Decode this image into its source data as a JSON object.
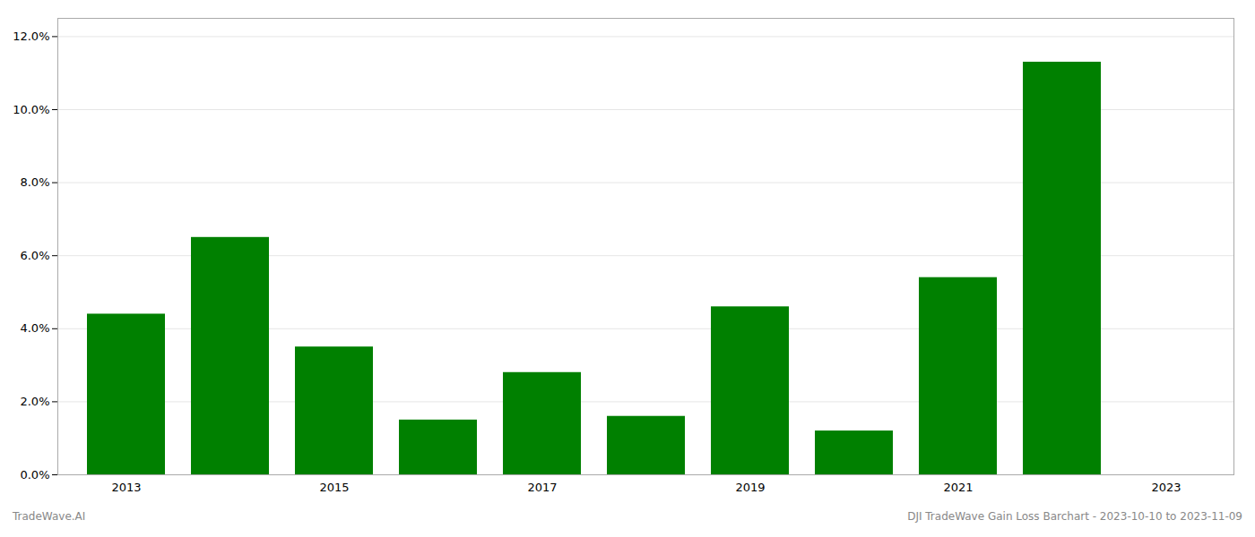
{
  "chart_data": {
    "type": "bar",
    "categories": [
      "2013",
      null,
      "2015",
      null,
      "2017",
      null,
      "2019",
      null,
      "2021",
      null,
      "2023"
    ],
    "values": [
      0.044,
      0.065,
      0.035,
      0.015,
      0.028,
      0.016,
      0.046,
      0.012,
      0.054,
      0.113,
      null
    ],
    "color": "#008000",
    "ylim": [
      0,
      0.125
    ],
    "yticks": [
      {
        "value": 0.0,
        "label": "0.0%"
      },
      {
        "value": 0.02,
        "label": "2.0%"
      },
      {
        "value": 0.04,
        "label": "4.0%"
      },
      {
        "value": 0.06,
        "label": "6.0%"
      },
      {
        "value": 0.08,
        "label": "8.0%"
      },
      {
        "value": 0.1,
        "label": "10.0%"
      },
      {
        "value": 0.12,
        "label": "12.0%"
      }
    ],
    "grid": true,
    "annotations": [
      "TradeWave.AI",
      "DJI TradeWave Gain Loss Barchart - 2023-10-10 to 2023-11-09"
    ]
  }
}
